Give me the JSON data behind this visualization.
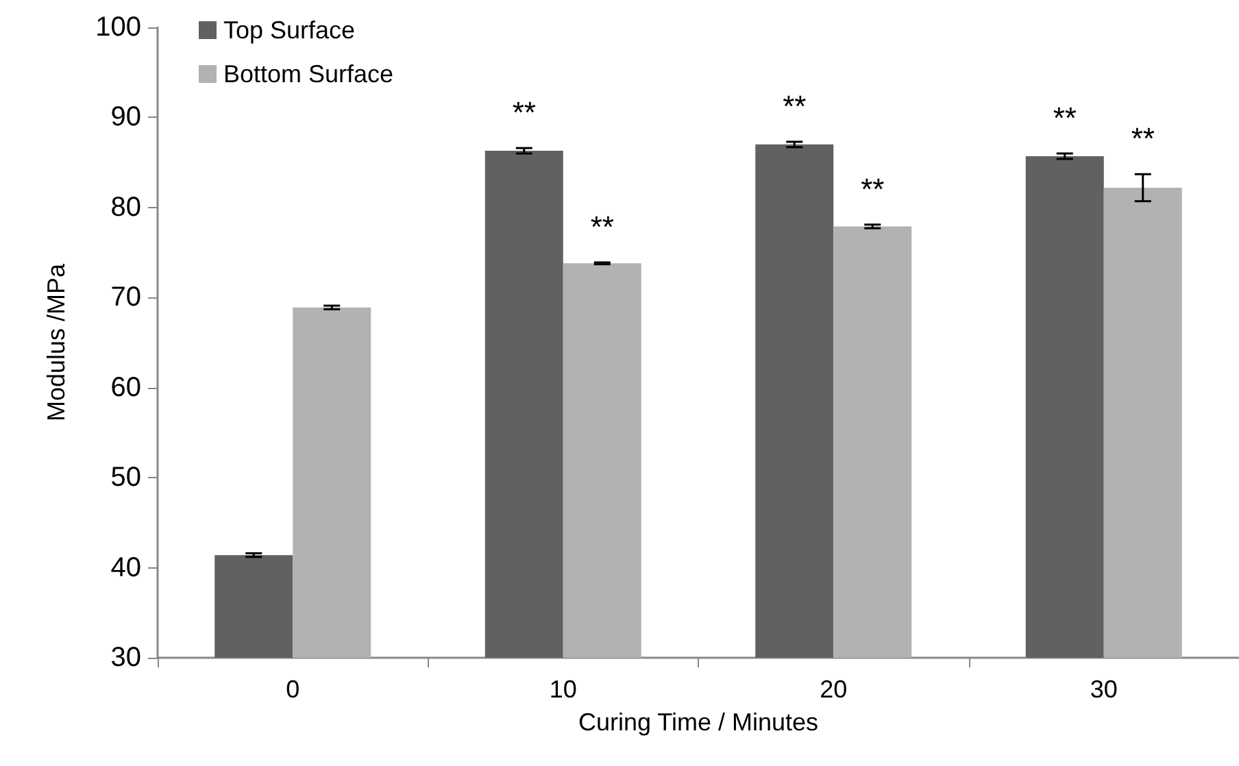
{
  "chart_data": {
    "type": "bar",
    "xlabel": "Curing Time / Minutes",
    "ylabel": "Modulus /MPa",
    "categories": [
      "0",
      "10",
      "20",
      "30"
    ],
    "series": [
      {
        "name": "Top Surface",
        "color": "#616161",
        "values": [
          41.4,
          86.3,
          87.0,
          85.7
        ],
        "errors": [
          0.2,
          0.3,
          0.3,
          0.3
        ]
      },
      {
        "name": "Bottom Surface",
        "color": "#b2b2b2",
        "values": [
          68.9,
          73.8,
          77.9,
          82.2
        ],
        "errors": [
          0.2,
          0.1,
          0.2,
          1.5
        ]
      }
    ],
    "ylim": [
      30,
      100
    ],
    "yticks": [
      30,
      40,
      50,
      60,
      70,
      80,
      90,
      100
    ],
    "grid": false,
    "legend": "top left",
    "annotations": [
      {
        "text": "**",
        "x": "10",
        "y": 86.3
      },
      {
        "text": "**",
        "x": "10",
        "y": 73.8
      },
      {
        "text": "**",
        "x": "20",
        "y": 87.0
      },
      {
        "text": "**",
        "x": "20",
        "y": 77.9
      },
      {
        "text": "**",
        "x": "30",
        "y": 85.7
      },
      {
        "text": "**",
        "x": "30",
        "y": 82.2
      }
    ]
  }
}
